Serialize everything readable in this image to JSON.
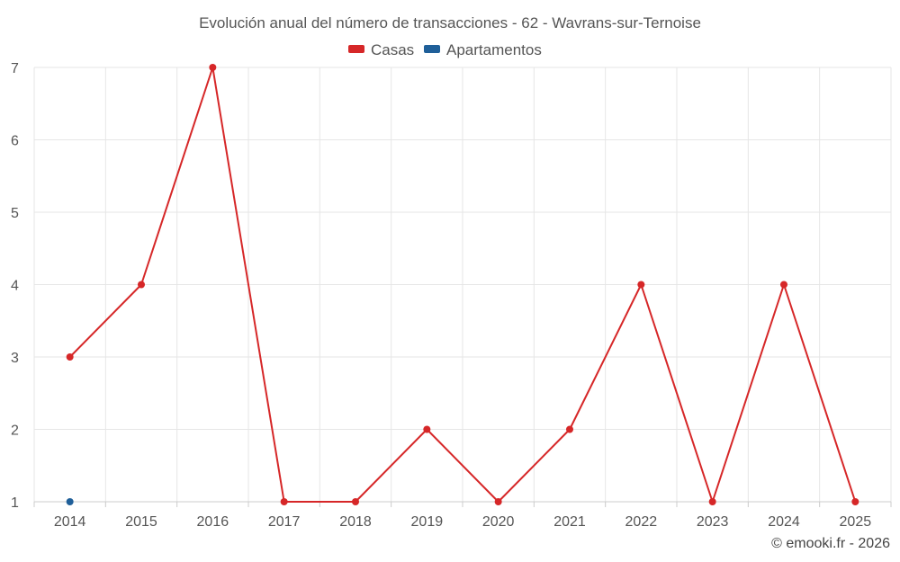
{
  "chart_data": {
    "type": "line",
    "title": "Evolución anual del número de transacciones - 62 - Wavrans-sur-Ternoise",
    "categories": [
      "2014",
      "2015",
      "2016",
      "2017",
      "2018",
      "2019",
      "2020",
      "2021",
      "2022",
      "2023",
      "2024",
      "2025"
    ],
    "series": [
      {
        "name": "Casas",
        "color": "#d62728",
        "values": [
          3,
          4,
          7,
          1,
          1,
          2,
          1,
          2,
          4,
          1,
          4,
          1
        ]
      },
      {
        "name": "Apartamentos",
        "color": "#1f5f99",
        "values": [
          1,
          null,
          null,
          null,
          null,
          null,
          null,
          null,
          null,
          null,
          null,
          null
        ]
      }
    ],
    "xlabel": "",
    "ylabel": "",
    "ylim": [
      1,
      7
    ],
    "yticks": [
      "1",
      "2",
      "3",
      "4",
      "5",
      "6",
      "7"
    ],
    "grid": true,
    "legend_position": "top-center"
  },
  "credit": "© emooki.fr - 2026"
}
